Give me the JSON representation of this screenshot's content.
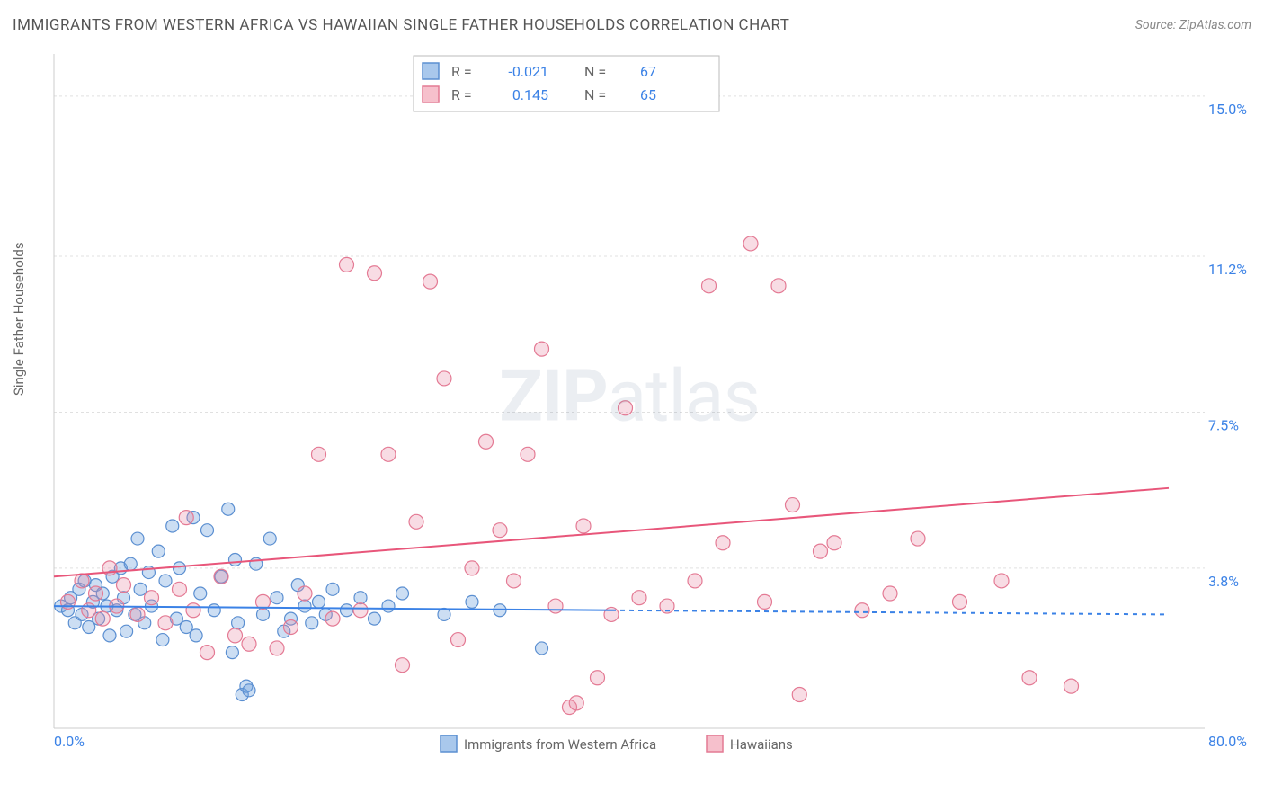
{
  "header": {
    "title": "IMMIGRANTS FROM WESTERN AFRICA VS HAWAIIAN SINGLE FATHER HOUSEHOLDS CORRELATION CHART",
    "source_prefix": "Source: ",
    "source": "ZipAtlas.com"
  },
  "y_axis": {
    "label": "Single Father Households"
  },
  "watermark": {
    "zip": "ZIP",
    "atlas": "atlas"
  },
  "chart": {
    "type": "scatter",
    "background_color": "#ffffff",
    "grid_color": "#e0e0e0",
    "axis_line_color": "#cccccc",
    "label_text_color": "#666666",
    "value_text_color": "#3b82e6",
    "xlim": [
      0,
      80
    ],
    "ylim": [
      0,
      16
    ],
    "x_tick_labels": {
      "min": "0.0%",
      "max": "80.0%"
    },
    "y_grid_lines": [
      {
        "value": 3.8,
        "label": "3.8%"
      },
      {
        "value": 7.5,
        "label": "7.5%"
      },
      {
        "value": 11.2,
        "label": "11.2%"
      },
      {
        "value": 15.0,
        "label": "15.0%"
      }
    ],
    "stats_box": {
      "border_color": "#bbbbbb",
      "rows": [
        {
          "swatch_fill": "#a9c8ec",
          "swatch_stroke": "#5b8fd1",
          "r_label": "R =",
          "r_value": "-0.021",
          "n_label": "N =",
          "n_value": "67"
        },
        {
          "swatch_fill": "#f6c0cc",
          "swatch_stroke": "#e47a94",
          "r_label": "R =",
          "r_value": "0.145",
          "n_label": "N =",
          "n_value": "65"
        }
      ]
    },
    "bottom_legend": [
      {
        "swatch_fill": "#a9c8ec",
        "swatch_stroke": "#5b8fd1",
        "label": "Immigrants from Western Africa"
      },
      {
        "swatch_fill": "#f6c0cc",
        "swatch_stroke": "#e47a94",
        "label": "Hawaiians"
      }
    ],
    "series": [
      {
        "name": "Immigrants from Western Africa",
        "marker_fill": "rgba(108,160,220,0.35)",
        "marker_stroke": "#5b8fd1",
        "marker_radius": 7,
        "trend": {
          "color": "#3b82e6",
          "width": 2,
          "x1": 0,
          "y1": 2.9,
          "x2_solid": 40,
          "y2_solid": 2.8,
          "x2_dash": 80,
          "y2_dash": 2.7
        },
        "points": [
          [
            0.5,
            2.9
          ],
          [
            1.0,
            2.8
          ],
          [
            1.2,
            3.1
          ],
          [
            1.5,
            2.5
          ],
          [
            1.8,
            3.3
          ],
          [
            2.0,
            2.7
          ],
          [
            2.2,
            3.5
          ],
          [
            2.5,
            2.4
          ],
          [
            2.8,
            3.0
          ],
          [
            3.0,
            3.4
          ],
          [
            3.2,
            2.6
          ],
          [
            3.5,
            3.2
          ],
          [
            3.8,
            2.9
          ],
          [
            4.0,
            2.2
          ],
          [
            4.2,
            3.6
          ],
          [
            4.5,
            2.8
          ],
          [
            4.8,
            3.8
          ],
          [
            5.0,
            3.1
          ],
          [
            5.2,
            2.3
          ],
          [
            5.5,
            3.9
          ],
          [
            5.8,
            2.7
          ],
          [
            6.0,
            4.5
          ],
          [
            6.2,
            3.3
          ],
          [
            6.5,
            2.5
          ],
          [
            6.8,
            3.7
          ],
          [
            7.0,
            2.9
          ],
          [
            7.5,
            4.2
          ],
          [
            7.8,
            2.1
          ],
          [
            8.0,
            3.5
          ],
          [
            8.5,
            4.8
          ],
          [
            8.8,
            2.6
          ],
          [
            9.0,
            3.8
          ],
          [
            9.5,
            2.4
          ],
          [
            10.0,
            5.0
          ],
          [
            10.2,
            2.2
          ],
          [
            10.5,
            3.2
          ],
          [
            11.0,
            4.7
          ],
          [
            11.5,
            2.8
          ],
          [
            12.0,
            3.6
          ],
          [
            12.5,
            5.2
          ],
          [
            12.8,
            1.8
          ],
          [
            13.0,
            4.0
          ],
          [
            13.2,
            2.5
          ],
          [
            13.5,
            0.8
          ],
          [
            13.8,
            1.0
          ],
          [
            14.0,
            0.9
          ],
          [
            14.5,
            3.9
          ],
          [
            15.0,
            2.7
          ],
          [
            15.5,
            4.5
          ],
          [
            16.0,
            3.1
          ],
          [
            16.5,
            2.3
          ],
          [
            17.0,
            2.6
          ],
          [
            17.5,
            3.4
          ],
          [
            18.0,
            2.9
          ],
          [
            18.5,
            2.5
          ],
          [
            19.0,
            3.0
          ],
          [
            19.5,
            2.7
          ],
          [
            20.0,
            3.3
          ],
          [
            21.0,
            2.8
          ],
          [
            22.0,
            3.1
          ],
          [
            23.0,
            2.6
          ],
          [
            24.0,
            2.9
          ],
          [
            25.0,
            3.2
          ],
          [
            28.0,
            2.7
          ],
          [
            30.0,
            3.0
          ],
          [
            32.0,
            2.8
          ],
          [
            35.0,
            1.9
          ]
        ]
      },
      {
        "name": "Hawaiians",
        "marker_fill": "rgba(232,140,165,0.30)",
        "marker_stroke": "#e47a94",
        "marker_radius": 8,
        "trend": {
          "color": "#e8567a",
          "width": 2,
          "x1": 0,
          "y1": 3.6,
          "x2_solid": 80,
          "y2_solid": 5.7,
          "x2_dash": 80,
          "y2_dash": 5.7
        },
        "points": [
          [
            1.0,
            3.0
          ],
          [
            2.0,
            3.5
          ],
          [
            2.5,
            2.8
          ],
          [
            3.0,
            3.2
          ],
          [
            3.5,
            2.6
          ],
          [
            4.0,
            3.8
          ],
          [
            4.5,
            2.9
          ],
          [
            5.0,
            3.4
          ],
          [
            6.0,
            2.7
          ],
          [
            7.0,
            3.1
          ],
          [
            8.0,
            2.5
          ],
          [
            9.0,
            3.3
          ],
          [
            9.5,
            5.0
          ],
          [
            10.0,
            2.8
          ],
          [
            11.0,
            1.8
          ],
          [
            12.0,
            3.6
          ],
          [
            13.0,
            2.2
          ],
          [
            14.0,
            2.0
          ],
          [
            15.0,
            3.0
          ],
          [
            16.0,
            1.9
          ],
          [
            17.0,
            2.4
          ],
          [
            18.0,
            3.2
          ],
          [
            19.0,
            6.5
          ],
          [
            20.0,
            2.6
          ],
          [
            21.0,
            11.0
          ],
          [
            22.0,
            2.8
          ],
          [
            23.0,
            10.8
          ],
          [
            24.0,
            6.5
          ],
          [
            25.0,
            1.5
          ],
          [
            26.0,
            4.9
          ],
          [
            27.0,
            10.6
          ],
          [
            28.0,
            8.3
          ],
          [
            29.0,
            2.1
          ],
          [
            30.0,
            3.8
          ],
          [
            31.0,
            6.8
          ],
          [
            32.0,
            4.7
          ],
          [
            33.0,
            3.5
          ],
          [
            34.0,
            6.5
          ],
          [
            35.0,
            9.0
          ],
          [
            36.0,
            2.9
          ],
          [
            37.0,
            0.5
          ],
          [
            37.5,
            0.6
          ],
          [
            38.0,
            4.8
          ],
          [
            39.0,
            1.2
          ],
          [
            40.0,
            2.7
          ],
          [
            41.0,
            7.6
          ],
          [
            42.0,
            3.1
          ],
          [
            44.0,
            2.9
          ],
          [
            46.0,
            3.5
          ],
          [
            47.0,
            10.5
          ],
          [
            48.0,
            4.4
          ],
          [
            50.0,
            11.5
          ],
          [
            51.0,
            3.0
          ],
          [
            52.0,
            10.5
          ],
          [
            53.0,
            5.3
          ],
          [
            53.5,
            0.8
          ],
          [
            55.0,
            4.2
          ],
          [
            56.0,
            4.4
          ],
          [
            58.0,
            2.8
          ],
          [
            60.0,
            3.2
          ],
          [
            62.0,
            4.5
          ],
          [
            65.0,
            3.0
          ],
          [
            68.0,
            3.5
          ],
          [
            70.0,
            1.2
          ],
          [
            73.0,
            1.0
          ]
        ]
      }
    ]
  }
}
